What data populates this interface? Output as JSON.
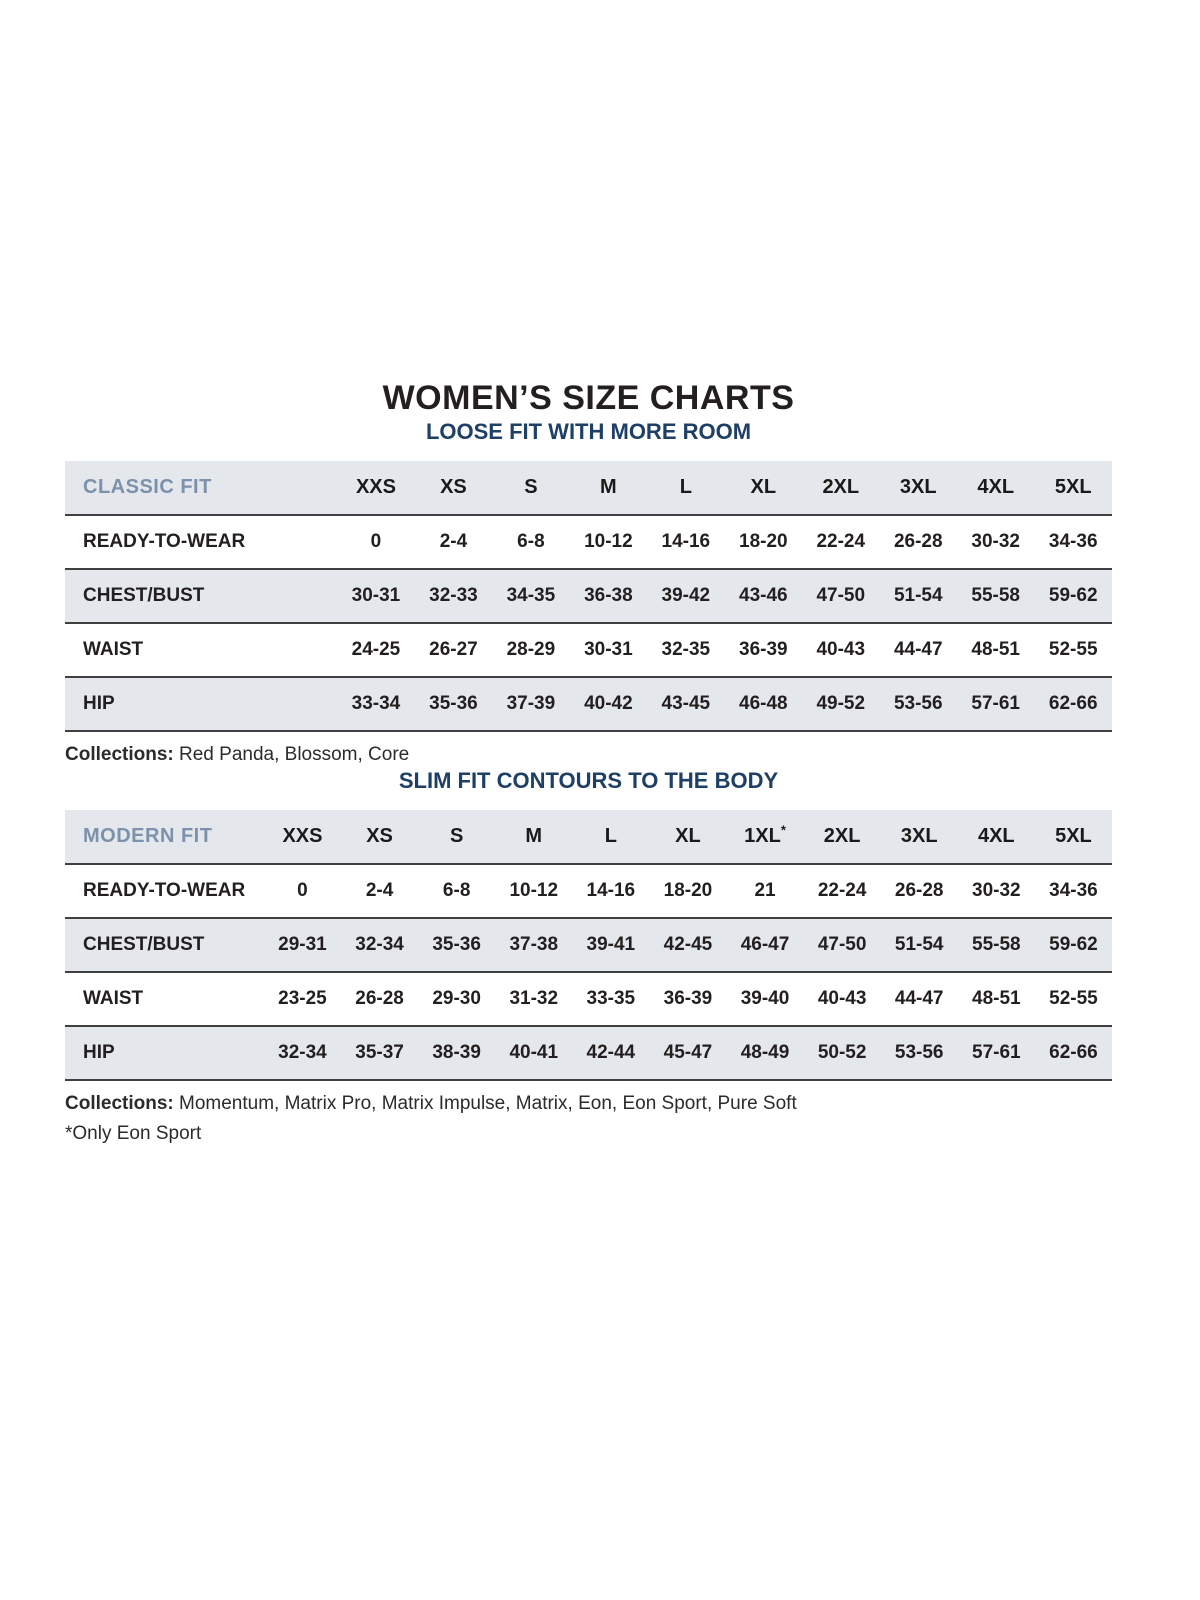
{
  "page": {
    "title": "WOMEN’S SIZE CHARTS"
  },
  "colors": {
    "title_text": "#231f20",
    "subtitle_text": "#1e3f66",
    "fit_label_text": "#7b91ac",
    "row_alt_background": "#e4e7ec",
    "row_divider": "#404040",
    "body_text": "#231f20"
  },
  "tables": [
    {
      "subtitle": "LOOSE FIT WITH MORE ROOM",
      "fit_label": "CLASSIC FIT",
      "sizes": [
        "XXS",
        "XS",
        "S",
        "M",
        "L",
        "XL",
        "2XL",
        "3XL",
        "4XL",
        "5XL"
      ],
      "rows": [
        {
          "label": "READY-TO-WEAR",
          "values": [
            "0",
            "2-4",
            "6-8",
            "10-12",
            "14-16",
            "18-20",
            "22-24",
            "26-28",
            "30-32",
            "34-36"
          ]
        },
        {
          "label": "CHEST/BUST",
          "values": [
            "30-31",
            "32-33",
            "34-35",
            "36-38",
            "39-42",
            "43-46",
            "47-50",
            "51-54",
            "55-58",
            "59-62"
          ]
        },
        {
          "label": "WAIST",
          "values": [
            "24-25",
            "26-27",
            "28-29",
            "30-31",
            "32-35",
            "36-39",
            "40-43",
            "44-47",
            "48-51",
            "52-55"
          ]
        },
        {
          "label": "HIP",
          "values": [
            "33-34",
            "35-36",
            "37-39",
            "40-42",
            "43-45",
            "46-48",
            "49-52",
            "53-56",
            "57-61",
            "62-66"
          ]
        }
      ],
      "collections_label": "Collections:",
      "collections": "Red Panda, Blossom, Core",
      "footnote": ""
    },
    {
      "subtitle": "SLIM FIT CONTOURS TO THE BODY",
      "fit_label": "MODERN FIT",
      "sizes": [
        "XXS",
        "XS",
        "S",
        "M",
        "L",
        "XL",
        "1XL*",
        "2XL",
        "3XL",
        "4XL",
        "5XL"
      ],
      "rows": [
        {
          "label": "READY-TO-WEAR",
          "values": [
            "0",
            "2-4",
            "6-8",
            "10-12",
            "14-16",
            "18-20",
            "21",
            "22-24",
            "26-28",
            "30-32",
            "34-36"
          ]
        },
        {
          "label": "CHEST/BUST",
          "values": [
            "29-31",
            "32-34",
            "35-36",
            "37-38",
            "39-41",
            "42-45",
            "46-47",
            "47-50",
            "51-54",
            "55-58",
            "59-62"
          ]
        },
        {
          "label": "WAIST",
          "values": [
            "23-25",
            "26-28",
            "29-30",
            "31-32",
            "33-35",
            "36-39",
            "39-40",
            "40-43",
            "44-47",
            "48-51",
            "52-55"
          ]
        },
        {
          "label": "HIP",
          "values": [
            "32-34",
            "35-37",
            "38-39",
            "40-41",
            "42-44",
            "45-47",
            "48-49",
            "50-52",
            "53-56",
            "57-61",
            "62-66"
          ]
        }
      ],
      "collections_label": "Collections:",
      "collections": "Momentum, Matrix Pro, Matrix Impulse, Matrix, Eon, Eon Sport, Pure Soft",
      "footnote": "*Only Eon Sport"
    }
  ]
}
